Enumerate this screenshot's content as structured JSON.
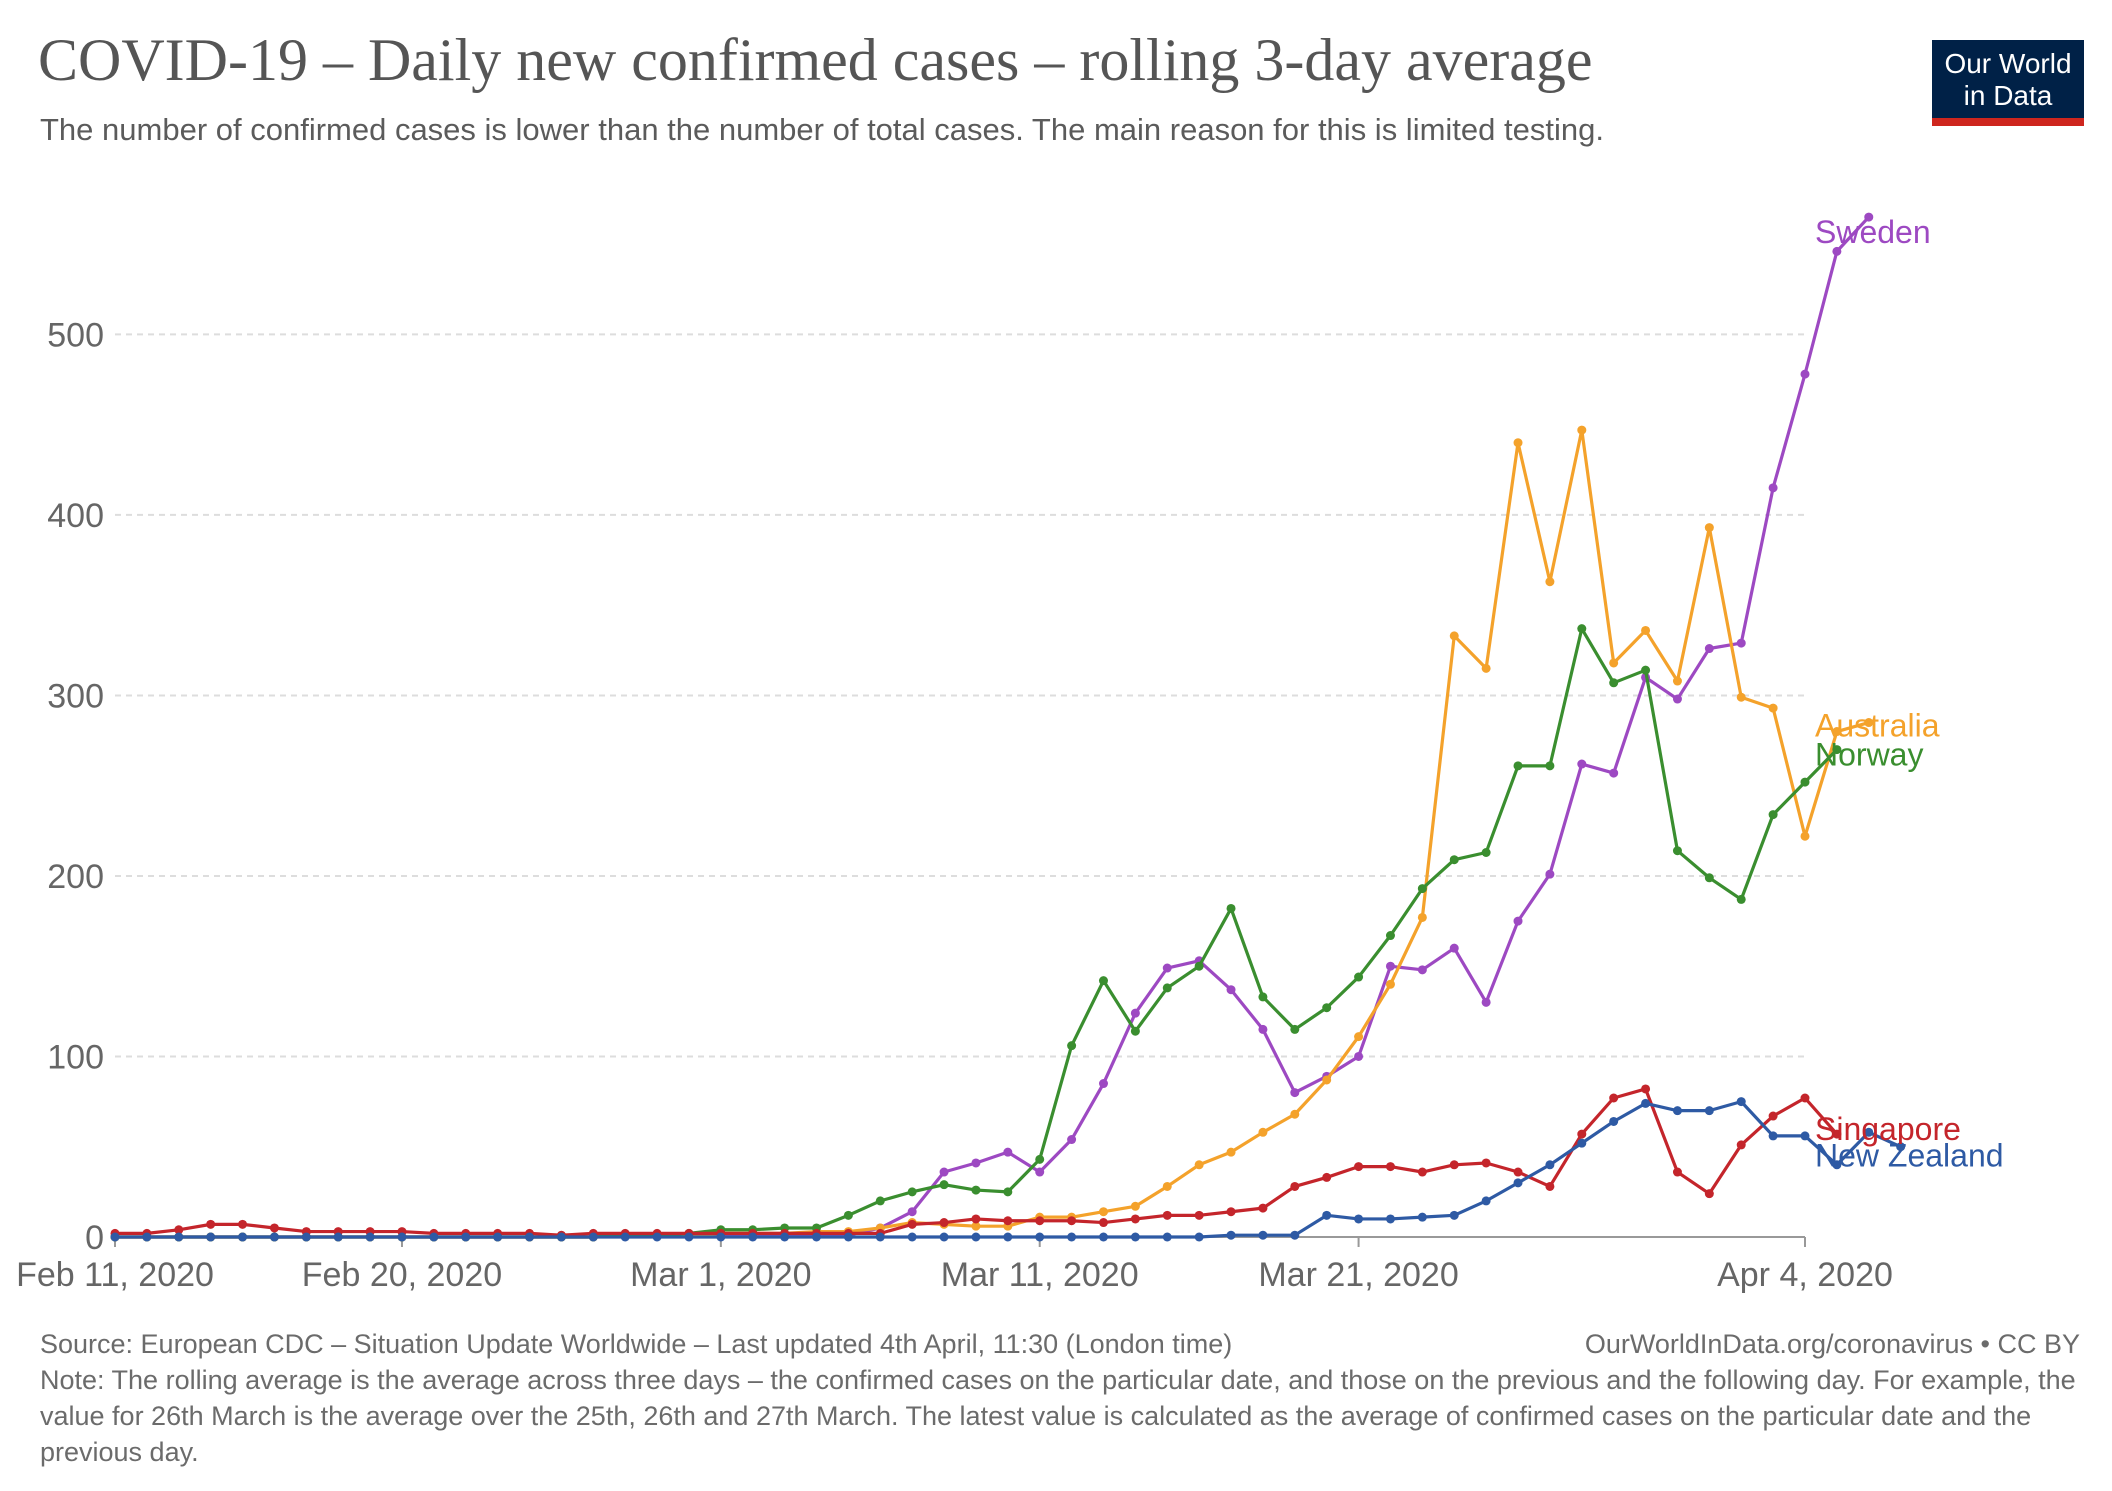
{
  "header": {
    "title": "COVID-19 – Daily new confirmed cases – rolling 3-day average",
    "subtitle": "The number of confirmed cases is lower than the number of total cases. The main reason for this is limited testing.",
    "logo_line1": "Our World",
    "logo_line2": "in Data"
  },
  "footer": {
    "source": "Source: European CDC – Situation Update Worldwide – Last updated 4th April, 11:30 (London time)",
    "credit": "OurWorldInData.org/coronavirus • CC BY",
    "note": "Note: The rolling average is the average across three days – the confirmed cases on the particular date, and those on the previous and the following day. For example, the value for 26th March is the average over the 25th, 26th and 27th March. The latest value is calculated as the average of confirmed cases on the particular date and the previous day."
  },
  "chart_data": {
    "type": "line",
    "x_start": "2020-02-11",
    "x_end": "2020-04-04",
    "x_ticks": [
      {
        "date": "2020-02-11",
        "label": "Feb 11, 2020"
      },
      {
        "date": "2020-02-20",
        "label": "Feb 20, 2020"
      },
      {
        "date": "2020-03-01",
        "label": "Mar 1, 2020"
      },
      {
        "date": "2020-03-11",
        "label": "Mar 11, 2020"
      },
      {
        "date": "2020-03-21",
        "label": "Mar 21, 2020"
      },
      {
        "date": "2020-04-04",
        "label": "Apr 4, 2020"
      }
    ],
    "ylim": [
      0,
      580
    ],
    "y_ticks": [
      0,
      100,
      200,
      300,
      400,
      500
    ],
    "grid": "horizontal dashed",
    "legend": "end-of-line labels at right",
    "series": [
      {
        "name": "Sweden",
        "color": "#9d49c2",
        "start": "2020-02-11",
        "values": [
          0,
          0,
          0,
          0,
          0,
          0,
          0,
          0,
          0,
          0,
          0,
          0,
          0,
          0,
          0,
          0,
          1,
          1,
          1,
          1,
          1,
          1,
          1,
          1,
          5,
          14,
          36,
          41,
          47,
          36,
          54,
          85,
          124,
          149,
          153,
          137,
          115,
          80,
          89,
          100,
          150,
          148,
          160,
          130,
          175,
          201,
          262,
          257,
          310,
          298,
          326,
          329,
          415,
          478,
          546,
          565
        ]
      },
      {
        "name": "Australia",
        "color": "#f4a22b",
        "start": "2020-02-11",
        "values": [
          0,
          0,
          0,
          0,
          0,
          0,
          0,
          0,
          0,
          0,
          0,
          0,
          0,
          0,
          0,
          0,
          1,
          1,
          1,
          2,
          2,
          2,
          3,
          3,
          5,
          8,
          7,
          6,
          6,
          11,
          11,
          14,
          17,
          28,
          40,
          47,
          58,
          68,
          87,
          111,
          140,
          177,
          333,
          315,
          440,
          363,
          447,
          318,
          336,
          308,
          393,
          299,
          293,
          222,
          280,
          285
        ]
      },
      {
        "name": "Norway",
        "color": "#3a8e2f",
        "start": "2020-02-11",
        "values": [
          0,
          0,
          0,
          0,
          0,
          0,
          0,
          0,
          0,
          0,
          0,
          0,
          0,
          0,
          0,
          0,
          1,
          1,
          2,
          4,
          4,
          5,
          5,
          12,
          20,
          25,
          29,
          26,
          25,
          43,
          106,
          142,
          114,
          138,
          150,
          182,
          133,
          115,
          127,
          144,
          167,
          193,
          209,
          213,
          261,
          261,
          337,
          307,
          314,
          214,
          199,
          187,
          234,
          252,
          270
        ]
      },
      {
        "name": "Singapore",
        "color": "#c4252b",
        "start": "2020-02-11",
        "values": [
          2,
          2,
          4,
          7,
          7,
          5,
          3,
          3,
          3,
          3,
          2,
          2,
          2,
          2,
          1,
          2,
          2,
          2,
          2,
          2,
          2,
          2,
          2,
          2,
          2,
          7,
          8,
          10,
          9,
          9,
          9,
          8,
          10,
          12,
          12,
          14,
          16,
          28,
          33,
          39,
          39,
          36,
          40,
          41,
          36,
          28,
          57,
          77,
          82,
          36,
          24,
          51,
          67,
          77,
          57
        ]
      },
      {
        "name": "New Zealand",
        "color": "#2e5aa4",
        "start": "2020-02-11",
        "values": [
          0,
          0,
          0,
          0,
          0,
          0,
          0,
          0,
          0,
          0,
          0,
          0,
          0,
          0,
          0,
          0,
          0,
          0,
          0,
          0,
          0,
          0,
          0,
          0,
          0,
          0,
          0,
          0,
          0,
          0,
          0,
          0,
          0,
          0,
          0,
          1,
          1,
          1,
          12,
          10,
          10,
          11,
          12,
          20,
          30,
          40,
          52,
          64,
          74,
          70,
          70,
          75,
          56,
          56,
          40,
          58,
          50
        ]
      }
    ]
  }
}
